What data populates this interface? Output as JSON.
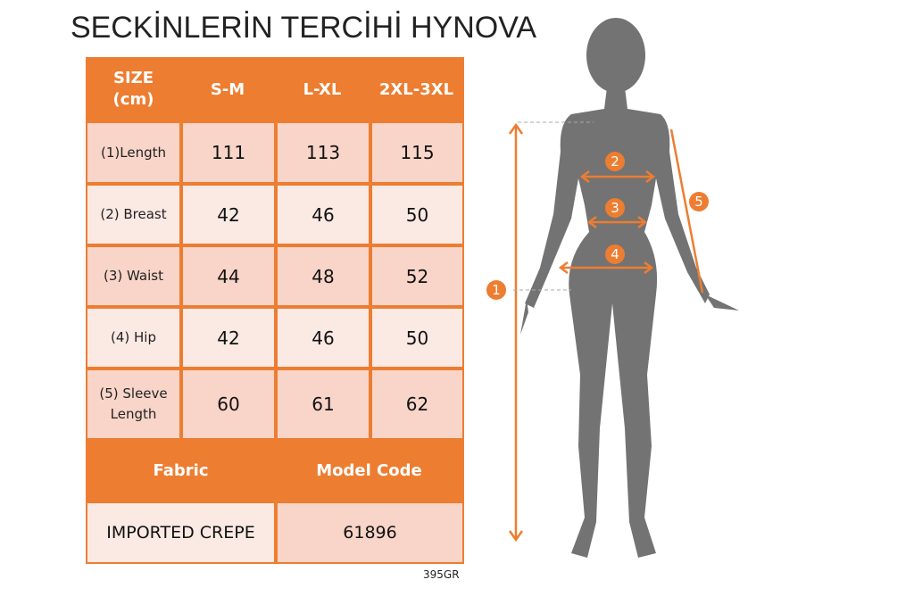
{
  "table": {
    "header": [
      "SIZE\n(cm)",
      "S-M",
      "L-XL",
      "2XL-3XL"
    ],
    "size_label_line1": "SIZE",
    "size_label_line2": "(cm)",
    "rows": [
      {
        "label": "(1)Length",
        "values": [
          "111",
          "113",
          "115"
        ]
      },
      {
        "label": "(2) Breast",
        "values": [
          "42",
          "46",
          "50"
        ]
      },
      {
        "label": "(3) Waist",
        "values": [
          "44",
          "48",
          "52"
        ]
      },
      {
        "label": "(4) Hip",
        "values": [
          "42",
          "46",
          "50"
        ]
      },
      {
        "label": "(5) Sleeve Length",
        "values": [
          "60",
          "61",
          "62"
        ]
      }
    ],
    "fabric_label": "Fabric",
    "model_code_label": "Model Code",
    "fabric_value": "IMPORTED CREPE",
    "model_code_value": "61896"
  },
  "product_code": "395GR",
  "watermark": "SECKİNLERİN TERCİHİ HYNOVA",
  "figure": {
    "markers": [
      "1",
      "2",
      "3",
      "4",
      "5"
    ]
  },
  "colors": {
    "accent": "#ed7d31",
    "row_dark": "#f8d5c8",
    "row_light": "#fbe9e3",
    "silhouette": "#737373"
  }
}
